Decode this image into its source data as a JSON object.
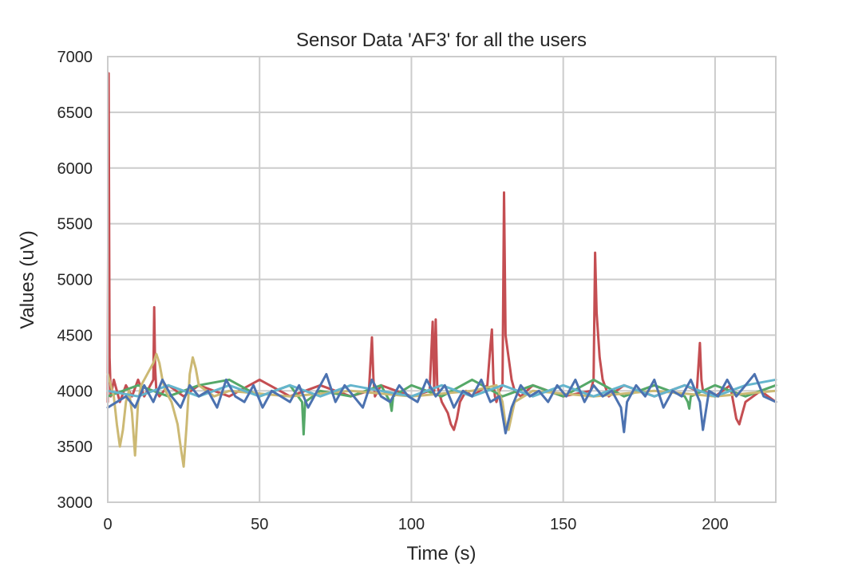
{
  "chart_data": {
    "type": "line",
    "title": "Sensor Data 'AF3' for all the users",
    "xlabel": "Time (s)",
    "ylabel": "Values (uV)",
    "xlim": [
      0,
      220
    ],
    "ylim": [
      3000,
      7000
    ],
    "xticks": [
      0,
      50,
      100,
      150,
      200
    ],
    "yticks": [
      3000,
      3500,
      4000,
      4500,
      5000,
      5500,
      6000,
      6500,
      7000
    ],
    "grid": true,
    "legend": "none",
    "series": [
      {
        "color": "#c44e52",
        "x": [
          0,
          0.3,
          0.6,
          1,
          2,
          4,
          6,
          8,
          10,
          12,
          14,
          15,
          15.3,
          15.6,
          16,
          17,
          20,
          25,
          30,
          40,
          50,
          60,
          70,
          80,
          86,
          87,
          87.5,
          88,
          90,
          100,
          106,
          107,
          107.5,
          108,
          108.5,
          109,
          110,
          112,
          113,
          114,
          115,
          116,
          118,
          120,
          125,
          126,
          126.5,
          127,
          127.5,
          128,
          129,
          130,
          130.5,
          131,
          132,
          133,
          134,
          136,
          140,
          150,
          159,
          160,
          160.5,
          161,
          162,
          163,
          165,
          170,
          180,
          190,
          194,
          195,
          195.5,
          196,
          200,
          205,
          207,
          208,
          209,
          210,
          215,
          220
        ],
        "y": [
          3900,
          6850,
          4300,
          3950,
          4100,
          3900,
          4050,
          3950,
          4100,
          3950,
          4050,
          4100,
          4750,
          4200,
          4000,
          3950,
          4050,
          3950,
          4050,
          3950,
          4100,
          3950,
          4050,
          3950,
          4000,
          4480,
          4100,
          3950,
          4050,
          3950,
          4000,
          4620,
          4000,
          4640,
          4050,
          4000,
          3900,
          3800,
          3700,
          3650,
          3750,
          3900,
          4000,
          3950,
          4050,
          4400,
          4550,
          4100,
          3950,
          3900,
          4000,
          4050,
          5780,
          4500,
          4300,
          4100,
          4000,
          3950,
          4050,
          3950,
          4000,
          4100,
          5240,
          4700,
          4300,
          4100,
          3950,
          4050,
          3950,
          4050,
          4000,
          4430,
          4100,
          4000,
          3950,
          4050,
          3750,
          3700,
          3800,
          3900,
          4000,
          3900
        ]
      },
      {
        "color": "#55a868",
        "x": [
          0,
          10,
          20,
          30,
          40,
          50,
          60,
          64,
          64.5,
          65,
          70,
          80,
          90,
          93,
          93.5,
          94,
          100,
          110,
          120,
          130,
          140,
          150,
          160,
          170,
          180,
          190,
          191,
          191.5,
          192,
          200,
          210,
          220
        ],
        "y": [
          3950,
          4050,
          3950,
          4050,
          4100,
          3950,
          4050,
          3900,
          3610,
          3900,
          4000,
          3950,
          4050,
          3900,
          3820,
          3950,
          4050,
          3950,
          4100,
          3950,
          4050,
          3950,
          4100,
          3950,
          4050,
          3950,
          3900,
          3840,
          3950,
          4050,
          3950,
          4050
        ]
      },
      {
        "color": "#ccb974",
        "x": [
          0,
          1,
          2,
          3,
          4,
          5,
          6,
          7,
          8,
          9,
          10,
          11,
          12,
          13,
          14,
          15,
          16,
          17,
          18,
          19,
          20,
          21,
          22,
          23,
          24,
          25,
          26,
          27,
          28,
          29,
          30,
          35,
          40,
          60,
          80,
          100,
          120,
          128,
          130,
          131,
          132,
          134,
          140,
          160,
          180,
          200,
          220
        ],
        "y": [
          4150,
          4050,
          3950,
          3700,
          3500,
          3650,
          3900,
          4000,
          3800,
          3420,
          3900,
          4050,
          4100,
          4150,
          4200,
          4250,
          4330,
          4250,
          4100,
          4000,
          3950,
          3900,
          3800,
          3700,
          3500,
          3320,
          3700,
          4150,
          4300,
          4200,
          4050,
          3950,
          4000,
          3950,
          4000,
          3950,
          4000,
          4050,
          3900,
          3700,
          3650,
          3900,
          4000,
          3950,
          4000,
          3950,
          4000
        ]
      },
      {
        "color": "#64b5cd",
        "x": [
          0,
          10,
          20,
          30,
          40,
          50,
          60,
          70,
          80,
          90,
          100,
          110,
          120,
          130,
          140,
          150,
          160,
          170,
          180,
          190,
          200,
          210,
          220
        ],
        "y": [
          4000,
          3950,
          4050,
          3950,
          4050,
          3950,
          4050,
          3950,
          4050,
          4000,
          3950,
          4050,
          3950,
          4050,
          3950,
          4050,
          3950,
          4050,
          3950,
          4050,
          3950,
          4050,
          4100
        ]
      },
      {
        "color": "#4c72b0",
        "x": [
          0,
          3,
          6,
          9,
          12,
          15,
          18,
          21,
          24,
          27,
          30,
          33,
          36,
          39,
          42,
          45,
          48,
          51,
          54,
          57,
          60,
          63,
          66,
          69,
          72,
          75,
          78,
          81,
          84,
          87,
          90,
          93,
          96,
          99,
          102,
          105,
          108,
          111,
          114,
          117,
          120,
          123,
          126,
          129,
          131,
          133,
          136,
          139,
          142,
          145,
          148,
          151,
          154,
          157,
          160,
          163,
          166,
          169,
          170,
          171,
          174,
          177,
          180,
          183,
          186,
          189,
          192,
          195,
          196,
          198,
          201,
          204,
          207,
          210,
          213,
          216,
          220
        ],
        "y": [
          3850,
          3900,
          3950,
          3850,
          4050,
          3900,
          4100,
          3950,
          3850,
          4050,
          3950,
          4000,
          3850,
          4100,
          3950,
          3900,
          4050,
          3850,
          4000,
          3950,
          3900,
          4050,
          3850,
          4000,
          4150,
          3900,
          4050,
          3950,
          3850,
          4100,
          3950,
          3900,
          4050,
          3950,
          3900,
          4100,
          3950,
          4050,
          3850,
          4000,
          3950,
          4100,
          3900,
          3950,
          3620,
          3850,
          4050,
          3950,
          4000,
          3900,
          4050,
          3950,
          4100,
          3900,
          4050,
          3950,
          4000,
          3850,
          3630,
          3900,
          4050,
          3950,
          4100,
          3850,
          4000,
          3950,
          4100,
          3900,
          3650,
          4000,
          3950,
          4100,
          3950,
          4050,
          4150,
          3950,
          3900
        ]
      }
    ]
  }
}
